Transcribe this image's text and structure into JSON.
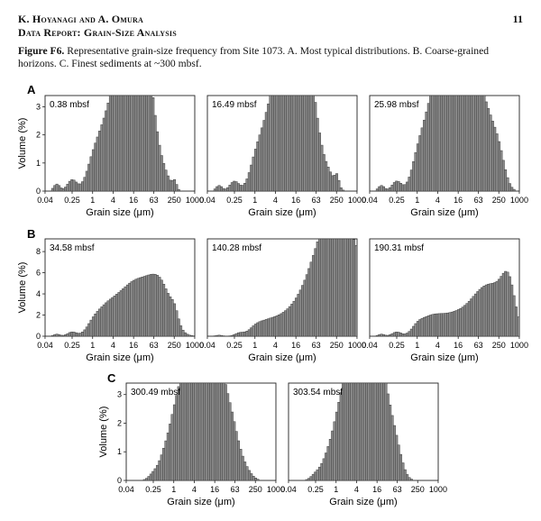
{
  "header": {
    "authors": "K. Hoyanagi and A. Omura",
    "report": "Data Report: Grain-Size Analysis",
    "page_number": "11"
  },
  "caption": {
    "label": "Figure F6.",
    "text": " Representative grain-size frequency from Site 1073. A. Most typical distributions. B. Coarse-grained horizons. C. Finest sediments at ~300 mbsf."
  },
  "chart_data": [
    {
      "type": "histogram",
      "section": "A",
      "title": "0.38 mbsf",
      "xlabel": "Grain size (μm)",
      "ylabel": "Volume (%)",
      "xscale": "log",
      "xticks": [
        "0.04",
        "0.25",
        "1",
        "4",
        "16",
        "63",
        "250",
        "1000"
      ],
      "yticks": [
        "0",
        "1",
        "2",
        "3"
      ],
      "ylim": [
        0,
        3.4
      ],
      "peaks": [
        [
          -3.5,
          0.6,
          0.25
        ],
        [
          -2,
          0.9,
          0.4
        ],
        [
          0,
          1.3,
          0.6
        ],
        [
          1,
          1.8,
          1.0
        ],
        [
          2,
          2.1,
          1.5
        ],
        [
          3,
          2.0,
          2.4
        ],
        [
          4,
          1.9,
          3.0
        ],
        [
          5,
          1.8,
          2.6
        ],
        [
          5.7,
          1.3,
          1.3
        ],
        [
          7,
          1.1,
          0.5
        ],
        [
          8,
          0.4,
          0.3
        ]
      ]
    },
    {
      "type": "histogram",
      "section": "A",
      "title": "16.49 mbsf",
      "xlabel": "Grain size (μm)",
      "ylabel": "",
      "xscale": "log",
      "xticks": [
        "0.04",
        "0.25",
        "1",
        "4",
        "16",
        "63",
        "250",
        "1000"
      ],
      "yticks": [],
      "ylim": [
        0,
        3.4
      ],
      "peaks": [
        [
          -3.5,
          0.6,
          0.2
        ],
        [
          -2,
          0.9,
          0.35
        ],
        [
          0,
          1.2,
          0.6
        ],
        [
          1,
          1.7,
          1.0
        ],
        [
          2,
          2.1,
          1.7
        ],
        [
          3,
          2.1,
          2.6
        ],
        [
          4,
          1.8,
          3.0
        ],
        [
          5,
          1.6,
          2.5
        ],
        [
          5.8,
          1.2,
          1.3
        ],
        [
          7,
          1.3,
          0.7
        ],
        [
          8,
          0.4,
          0.4
        ]
      ]
    },
    {
      "type": "histogram",
      "section": "A",
      "title": "25.98 mbsf",
      "xlabel": "Grain size (μm)",
      "ylabel": "",
      "xscale": "log",
      "xticks": [
        "0.04",
        "0.25",
        "1",
        "4",
        "16",
        "63",
        "250",
        "1000"
      ],
      "yticks": [],
      "ylim": [
        0,
        3.4
      ],
      "peaks": [
        [
          -3.5,
          0.6,
          0.2
        ],
        [
          -2,
          0.9,
          0.35
        ],
        [
          0,
          1.2,
          0.6
        ],
        [
          1,
          1.8,
          1.2
        ],
        [
          2,
          2.1,
          2.0
        ],
        [
          3,
          2.0,
          2.5
        ],
        [
          4,
          1.9,
          2.5
        ],
        [
          5,
          1.8,
          2.2
        ],
        [
          6,
          1.6,
          1.8
        ],
        [
          7,
          1.5,
          1.6
        ],
        [
          8,
          1.2,
          1.0
        ]
      ]
    },
    {
      "type": "histogram",
      "section": "B",
      "title": "34.58 mbsf",
      "xlabel": "Grain size (μm)",
      "ylabel": "Volume (%)",
      "xscale": "log",
      "xticks": [
        "0.04",
        "0.25",
        "1",
        "4",
        "16",
        "63",
        "250",
        "1000"
      ],
      "yticks": [
        "0",
        "2",
        "4",
        "6",
        "8"
      ],
      "ylim": [
        0,
        9.2
      ],
      "peaks": [
        [
          -3.5,
          0.6,
          0.2
        ],
        [
          -2,
          0.9,
          0.4
        ],
        [
          0,
          1.3,
          0.8
        ],
        [
          1,
          1.7,
          1.2
        ],
        [
          2,
          2.2,
          1.6
        ],
        [
          3,
          2.2,
          1.9
        ],
        [
          4,
          1.9,
          2.0
        ],
        [
          5,
          2.0,
          2.2
        ],
        [
          6,
          2.0,
          2.6
        ],
        [
          7,
          1.9,
          2.9
        ],
        [
          8,
          0.7,
          1.0
        ]
      ]
    },
    {
      "type": "histogram",
      "section": "B",
      "title": "140.28 mbsf",
      "xlabel": "Grain size (μm)",
      "ylabel": "",
      "xscale": "log",
      "xticks": [
        "0.04",
        "0.25",
        "1",
        "4",
        "16",
        "63",
        "250",
        "1000"
      ],
      "yticks": [],
      "ylim": [
        0,
        9.2
      ],
      "peaks": [
        [
          -3.5,
          0.6,
          0.1
        ],
        [
          -1.5,
          0.9,
          0.3
        ],
        [
          0,
          1.3,
          0.6
        ],
        [
          1,
          1.7,
          0.7
        ],
        [
          2,
          2.1,
          0.7
        ],
        [
          3,
          2.1,
          0.6
        ],
        [
          4,
          1.8,
          0.5
        ],
        [
          5,
          1.5,
          0.4
        ],
        [
          6,
          1.6,
          0.5
        ],
        [
          7,
          1.8,
          1.0
        ],
        [
          8,
          4.8,
          8.8
        ],
        [
          8.6,
          4.1,
          2.5
        ]
      ]
    },
    {
      "type": "histogram",
      "section": "B",
      "title": "190.31 mbsf",
      "xlabel": "Grain size (μm)",
      "ylabel": "",
      "xscale": "log",
      "xticks": [
        "0.04",
        "0.25",
        "1",
        "4",
        "16",
        "63",
        "250",
        "1000"
      ],
      "yticks": [],
      "ylim": [
        0,
        9.2
      ],
      "peaks": [
        [
          -3.5,
          0.6,
          0.2
        ],
        [
          -2,
          0.9,
          0.4
        ],
        [
          0,
          1.2,
          0.7
        ],
        [
          1,
          1.7,
          0.9
        ],
        [
          2,
          2.2,
          1.0
        ],
        [
          3,
          2.1,
          1.0
        ],
        [
          4,
          1.6,
          0.9
        ],
        [
          5,
          1.6,
          0.9
        ],
        [
          6,
          2.0,
          1.5
        ],
        [
          7,
          2.5,
          2.9
        ],
        [
          8,
          2.1,
          1.5
        ],
        [
          8.6,
          1.5,
          1.2
        ],
        [
          9,
          1.2,
          2.9
        ]
      ]
    },
    {
      "type": "histogram",
      "section": "C",
      "title": "300.49 mbsf",
      "xlabel": "Grain size (μm)",
      "ylabel": "Volume (%)",
      "xscale": "log",
      "xticks": [
        "0.04",
        "0.25",
        "1",
        "4",
        "16",
        "63",
        "250",
        "1000"
      ],
      "yticks": [
        "0",
        "1",
        "2",
        "3"
      ],
      "ylim": [
        0,
        3.4
      ],
      "peaks": [
        [
          -2,
          0.9,
          0.2
        ],
        [
          -1,
          1.1,
          0.6
        ],
        [
          0,
          1.3,
          1.3
        ],
        [
          1,
          1.6,
          2.0
        ],
        [
          2,
          1.8,
          2.5
        ],
        [
          3,
          1.8,
          3.0
        ],
        [
          4,
          1.9,
          2.4
        ],
        [
          5,
          1.7,
          1.5
        ],
        [
          5.9,
          1.3,
          0.8
        ],
        [
          7,
          1.2,
          0.3
        ]
      ]
    },
    {
      "type": "histogram",
      "section": "C",
      "title": "303.54 mbsf",
      "xlabel": "Grain size (μm)",
      "ylabel": "",
      "xscale": "log",
      "xticks": [
        "0.04",
        "0.25",
        "1",
        "4",
        "16",
        "63",
        "250",
        "1000"
      ],
      "yticks": [],
      "ylim": [
        0,
        3.4
      ],
      "peaks": [
        [
          -2,
          0.9,
          0.2
        ],
        [
          -1,
          1.1,
          0.5
        ],
        [
          0,
          1.3,
          1.1
        ],
        [
          1,
          1.6,
          1.9
        ],
        [
          2,
          1.8,
          2.6
        ],
        [
          3,
          1.8,
          3.1
        ],
        [
          4,
          1.9,
          2.4
        ],
        [
          5,
          1.6,
          1.4
        ],
        [
          6,
          1.1,
          0.5
        ]
      ]
    }
  ]
}
